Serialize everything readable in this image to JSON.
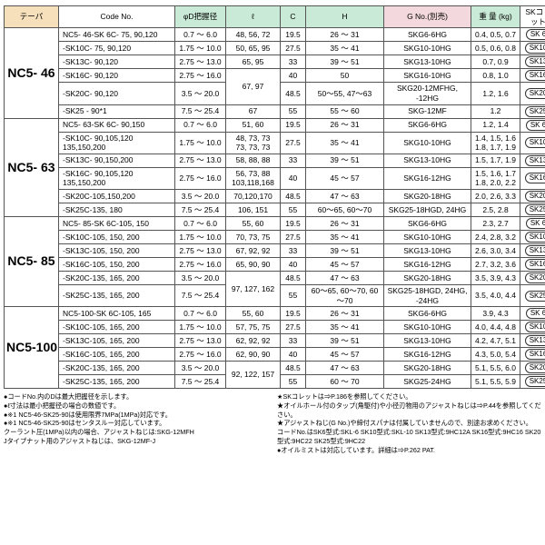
{
  "headers": {
    "taper": "テーパ",
    "code": "Code No.",
    "phiD": "φD把握径",
    "ell": "ℓ",
    "C": "C",
    "H": "H",
    "G": "G No.(別売)",
    "weight": "重 量\n(kg)",
    "collet": "SKコレット"
  },
  "groups": [
    {
      "name": "NC5- 46",
      "rows": [
        {
          "code": "NC5- 46-SK 6C- 75, 90,120",
          "phiD": "0.7 ～ 6.0",
          "ell": "48, 56, 72",
          "C": "19.5",
          "H": "26 ～ 31",
          "G": "SKG6-6HG",
          "wt": "0.4, 0.5, 0.7",
          "collet": "SK 6"
        },
        {
          "code": "-SK10C- 75, 90,120",
          "phiD": "1.75 ～ 10.0",
          "ell": "50, 65, 95",
          "C": "27.5",
          "H": "35 ～ 41",
          "G": "SKG10-10HG",
          "wt": "0.5, 0.6, 0.8",
          "collet": "SK10"
        },
        {
          "code": "-SK13C- 90,120",
          "phiD": "2.75 ～ 13.0",
          "ell": "65, 95",
          "C": "33",
          "H": "39 ～ 51",
          "G": "SKG13-10HG",
          "wt": "0.7, 0.9",
          "collet": "SK13"
        },
        {
          "code": "-SK16C- 90,120",
          "phiD": "2.75 ～ 16.0",
          "ell": "67, 97",
          "C": "40",
          "H": "50",
          "G": "SKG16-10HG",
          "wt": "0.8, 1.0",
          "collet": "SK16",
          "ellSpan": true
        },
        {
          "code": "-SK20C- 90,120",
          "phiD": "3.5 ～ 20.0",
          "ell": "",
          "C": "48.5",
          "H": "50～55, 47～63",
          "G": "SKG20-12MFHG, -12HG",
          "wt": "1.2, 1.6",
          "collet": "SK20"
        },
        {
          "code": "-SK25 - 90*1",
          "phiD": "7.5 ～ 25.4",
          "ell": "67",
          "C": "55",
          "H": "55 ～ 60",
          "G": "SKG-12MF",
          "wt": "1.2",
          "collet": "SK25"
        }
      ]
    },
    {
      "name": "NC5- 63",
      "rows": [
        {
          "code": "NC5- 63-SK 6C- 90,150",
          "phiD": "0.7 ～ 6.0",
          "ell": "51, 60",
          "C": "19.5",
          "H": "26 ～ 31",
          "G": "SKG6-6HG",
          "wt": "1.2, 1.4",
          "collet": "SK 6"
        },
        {
          "code": "-SK10C- 90,105,120\n135,150,200",
          "phiD": "1.75 ～ 10.0",
          "ell": "48, 73, 73\n73, 73, 73",
          "C": "27.5",
          "H": "35 ～ 41",
          "G": "SKG10-10HG",
          "wt": "1.4, 1.5, 1.6\n1.8, 1.7, 1.9",
          "collet": "SK10"
        },
        {
          "code": "-SK13C- 90,150,200",
          "phiD": "2.75 ～ 13.0",
          "ell": "58, 88, 88",
          "C": "33",
          "H": "39 ～ 51",
          "G": "SKG13-10HG",
          "wt": "1.5, 1.7, 1.9",
          "collet": "SK13"
        },
        {
          "code": "-SK16C- 90,105,120\n135,150,200",
          "phiD": "2.75 ～ 16.0",
          "ell": "56, 73, 88\n103,118,168",
          "C": "40",
          "H": "45 ～ 57",
          "G": "SKG16-12HG",
          "wt": "1.5, 1.6, 1.7\n1.8, 2.0, 2.2",
          "collet": "SK16"
        },
        {
          "code": "-SK20C-105,150,200",
          "phiD": "3.5 ～ 20.0",
          "ell": "70,120,170",
          "C": "48.5",
          "H": "47 ～ 63",
          "G": "SKG20-18HG",
          "wt": "2.0, 2.6, 3.3",
          "collet": "SK20"
        },
        {
          "code": "-SK25C-135, 180",
          "phiD": "7.5 ～ 25.4",
          "ell": "106, 151",
          "C": "55",
          "H": "60～65, 60～70",
          "G": "SKG25-18HGD, 24HG",
          "wt": "2.5, 2.8",
          "collet": "SK25"
        }
      ]
    },
    {
      "name": "NC5- 85",
      "rows": [
        {
          "code": "NC5- 85-SK 6C-105, 150",
          "phiD": "0.7 ～ 6.0",
          "ell": "55, 60",
          "C": "19.5",
          "H": "26 ～ 31",
          "G": "SKG6-6HG",
          "wt": "2.3, 2.7",
          "collet": "SK 6"
        },
        {
          "code": "-SK10C-105, 150, 200",
          "phiD": "1.75 ～ 10.0",
          "ell": "70, 73, 75",
          "C": "27.5",
          "H": "35 ～ 41",
          "G": "SKG10-10HG",
          "wt": "2.4, 2.8, 3.2",
          "collet": "SK10"
        },
        {
          "code": "-SK13C-105, 150, 200",
          "phiD": "2.75 ～ 13.0",
          "ell": "67, 92, 92",
          "C": "33",
          "H": "39 ～ 51",
          "G": "SKG13-10HG",
          "wt": "2.6, 3.0, 3.4",
          "collet": "SK13"
        },
        {
          "code": "-SK16C-105, 150, 200",
          "phiD": "2.75 ～ 16.0",
          "ell": "65, 90, 90",
          "C": "40",
          "H": "45 ～ 57",
          "G": "SKG16-12HG",
          "wt": "2.7, 3.2, 3.6",
          "collet": "SK16"
        },
        {
          "code": "-SK20C-135, 165, 200",
          "phiD": "3.5 ～ 20.0",
          "ell": "97, 127, 162",
          "C": "48.5",
          "H": "47 ～ 63",
          "G": "SKG20-18HG",
          "wt": "3.5, 3.9, 4.3",
          "collet": "SK20",
          "ellSpan": true
        },
        {
          "code": "-SK25C-135, 165, 200",
          "phiD": "7.5 ～ 25.4",
          "ell": "",
          "C": "55",
          "H": "60～65, 60～70, 60～70",
          "G": "SKG25-18HGD, 24HG, -24HG",
          "wt": "3.5, 4.0, 4.4",
          "collet": "SK25"
        }
      ]
    },
    {
      "name": "NC5-100",
      "rows": [
        {
          "code": "NC5-100-SK 6C-105, 165",
          "phiD": "0.7 ～ 6.0",
          "ell": "55, 60",
          "C": "19.5",
          "H": "26 ～ 31",
          "G": "SKG6-6HG",
          "wt": "3.9, 4.3",
          "collet": "SK 6"
        },
        {
          "code": "-SK10C-105, 165, 200",
          "phiD": "1.75 ～ 10.0",
          "ell": "57, 75, 75",
          "C": "27.5",
          "H": "35 ～ 41",
          "G": "SKG10-10HG",
          "wt": "4.0, 4.4, 4.8",
          "collet": "SK10"
        },
        {
          "code": "-SK13C-105, 165, 200",
          "phiD": "2.75 ～ 13.0",
          "ell": "62, 92, 92",
          "C": "33",
          "H": "39 ～ 51",
          "G": "SKG13-10HG",
          "wt": "4.2, 4.7, 5.1",
          "collet": "SK13"
        },
        {
          "code": "-SK16C-105, 165, 200",
          "phiD": "2.75 ～ 16.0",
          "ell": "62, 90, 90",
          "C": "40",
          "H": "45 ～ 57",
          "G": "SKG16-12HG",
          "wt": "4.3, 5.0, 5.4",
          "collet": "SK16"
        },
        {
          "code": "-SK20C-135, 165, 200",
          "phiD": "3.5 ～ 20.0",
          "ell": "92, 122, 157",
          "C": "48.5",
          "H": "47 ～ 63",
          "G": "SKG20-18HG",
          "wt": "5.1, 5.5, 6.0",
          "collet": "SK20",
          "ellSpan": true
        },
        {
          "code": "-SK25C-135, 165, 200",
          "phiD": "7.5 ～ 25.4",
          "ell": "",
          "C": "55",
          "H": "60 ～ 70",
          "G": "SKG25-24HG",
          "wt": "5.1, 5.5, 5.9",
          "collet": "SK25"
        }
      ]
    }
  ],
  "notes": {
    "left": [
      "●コードNo.内のDは最大把握径を示します。",
      "●ℓ寸法は最小把握径の場合の数値です。",
      "●※1  NC5-46-SK25-90は使用限界7MPa(1MPa)対応です。",
      "●※1  NC5-46-SK25-90はセンタスルー対応しています。",
      "クーラント圧(1MPa)以内の場合、アジャストねじは:SKG-12MFH",
      "Jタイプナット用のアジャストねじは、SKG-12MF-J"
    ],
    "right": [
      "★SKコレットは⇒P.186を参照してください。",
      "★オイルホール付のタップ(角駆付)や小径刃物用のアジャストねじは⇒P.44を参照してください。",
      "★アジャストねじ(G No.)や締付スパナは付属していませんので、別途お求めください。",
      "  コードNo.はSK6型式:SKL-6 SK10型式:SKL-10 SK13型式:9HC12A SK16型式:9HC16 SK20型式:9HC22 SK25型式:9HC22",
      "●オイルミストは対応しています。詳細は⇒P.262   PAT."
    ]
  },
  "style": {
    "hdrColors": {
      "a": "#f6e0bc",
      "b": "#c9ead6",
      "c": "#f3d9dd",
      "d": "#ffffff"
    }
  }
}
